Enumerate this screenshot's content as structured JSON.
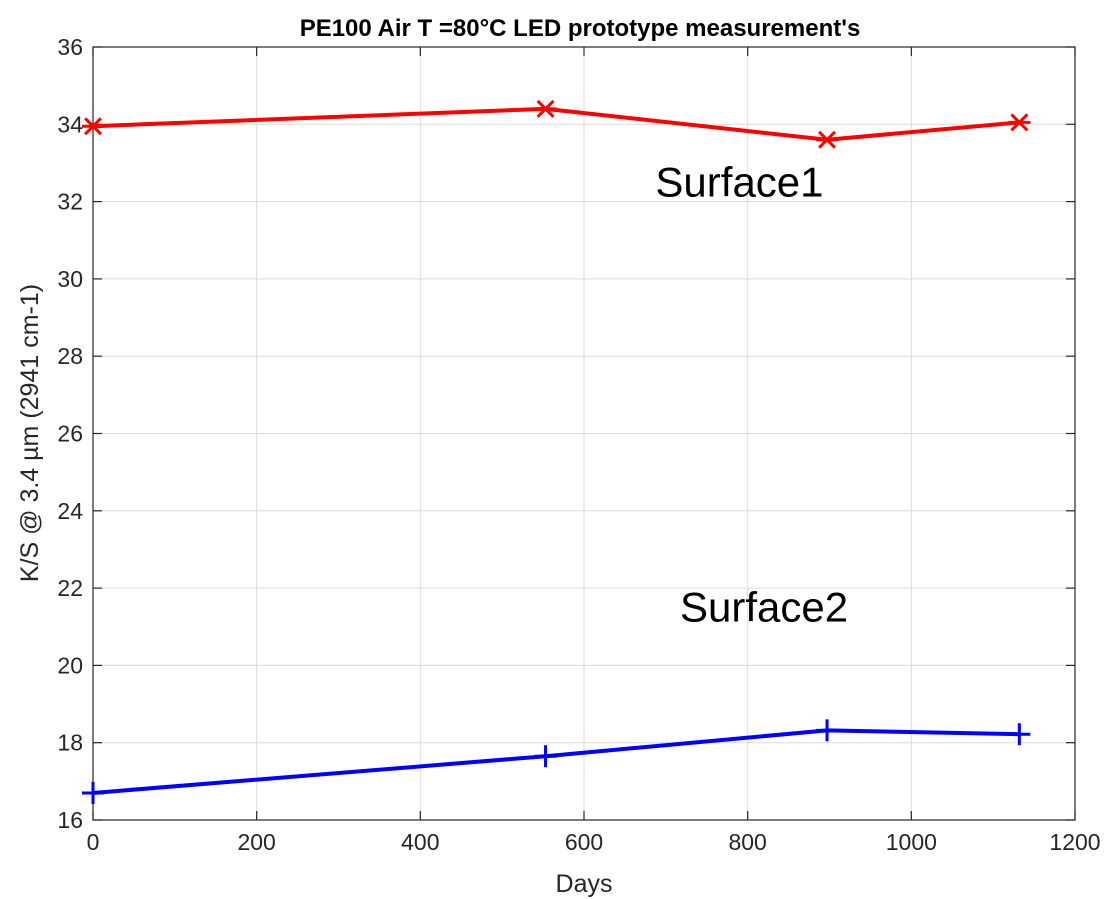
{
  "chart_data": {
    "type": "line",
    "title": "PE100 Air T =80°C LED prototype measurement's",
    "xlabel": "Days",
    "ylabel": "K/S @ 3.4 µm (2941 cm-1)",
    "xlim": [
      0,
      1200
    ],
    "ylim": [
      16,
      36
    ],
    "xticks": [
      0,
      200,
      400,
      600,
      800,
      1000,
      1200
    ],
    "yticks": [
      16,
      18,
      20,
      22,
      24,
      26,
      28,
      30,
      32,
      34,
      36
    ],
    "grid": true,
    "series": [
      {
        "x": [
          0,
          553,
          897,
          1132
        ],
        "y": [
          33.95,
          34.4,
          33.6,
          34.05
        ],
        "color": "#ff0000",
        "marker": "asterisk"
      },
      {
        "x": [
          0,
          553,
          897,
          1132
        ],
        "y": [
          16.7,
          17.65,
          18.32,
          18.22
        ],
        "color": "#0000ff",
        "marker": "plus"
      }
    ],
    "annotations": [
      {
        "text": "Surface1",
        "x": 790,
        "y": 32.5
      },
      {
        "text": "Surface2",
        "x": 820,
        "y": 21.5
      }
    ]
  }
}
